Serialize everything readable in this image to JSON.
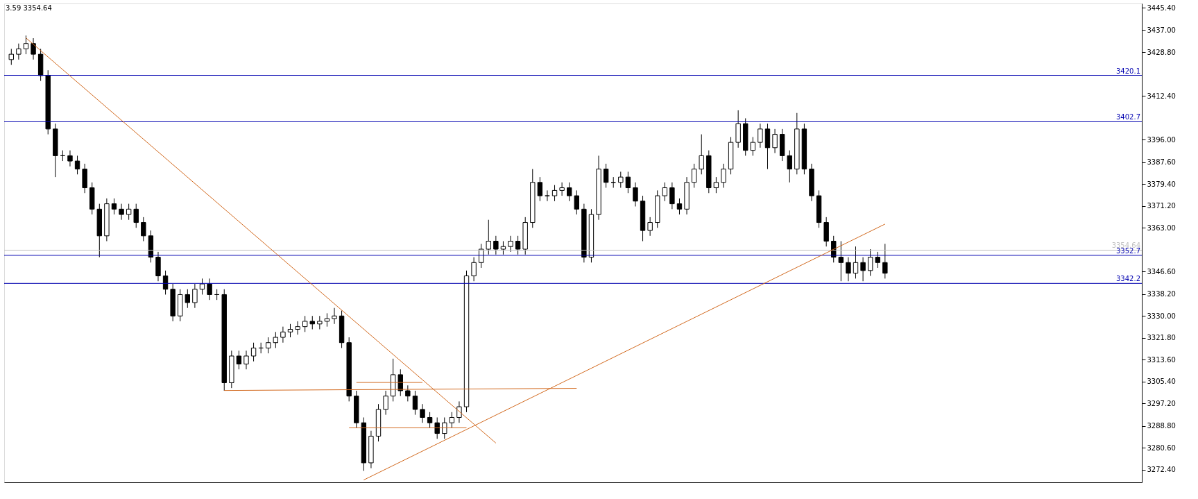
{
  "chart_data": {
    "type": "candlestick",
    "categories": [
      null,
      null,
      null,
      null,
      null,
      null,
      null,
      null,
      null,
      null,
      null,
      null,
      null,
      null,
      null,
      null,
      null,
      null,
      null,
      null,
      null,
      null,
      null,
      null,
      null,
      null,
      null,
      null,
      null,
      null,
      null,
      null,
      null,
      null,
      null,
      null,
      null,
      null,
      null,
      null,
      null,
      null,
      null,
      null,
      null,
      null,
      null,
      null,
      null,
      null,
      null,
      null,
      null,
      null,
      null,
      null,
      null,
      null,
      null,
      null,
      null,
      null,
      null,
      null,
      null,
      null,
      null,
      null,
      null,
      null,
      null,
      null,
      null,
      null,
      null,
      null,
      null,
      null,
      null,
      null,
      null,
      null,
      null,
      null,
      null,
      null,
      null,
      null,
      null,
      null,
      null,
      null,
      null,
      null,
      null,
      null,
      null,
      null,
      null,
      null,
      null,
      null,
      null,
      null,
      null,
      null,
      null,
      null,
      null,
      null,
      null,
      null,
      null,
      null,
      null,
      null,
      null,
      null,
      null,
      null,
      null,
      null,
      null,
      null,
      null,
      null,
      null,
      null,
      null,
      null,
      null,
      null,
      null,
      null,
      null,
      null,
      null,
      null,
      null,
      null,
      null,
      null,
      null,
      null,
      null,
      null,
      null,
      null,
      null,
      null,
      null,
      null,
      null,
      null
    ],
    "ohlc": [
      [
        3426,
        3430,
        3424,
        3428
      ],
      [
        3428,
        3432,
        3426,
        3430
      ],
      [
        3430,
        3435,
        3428,
        3432
      ],
      [
        3432,
        3434,
        3426,
        3428
      ],
      [
        3428,
        3430,
        3418,
        3420
      ],
      [
        3420,
        3422,
        3398,
        3400
      ],
      [
        3400,
        3402,
        3382,
        3390
      ],
      [
        3390,
        3392,
        3388,
        3390
      ],
      [
        3390,
        3392,
        3386,
        3388
      ],
      [
        3388,
        3390,
        3383,
        3385
      ],
      [
        3385,
        3387,
        3376,
        3378
      ],
      [
        3378,
        3380,
        3368,
        3370
      ],
      [
        3370,
        3372,
        3352,
        3360
      ],
      [
        3360,
        3374,
        3358,
        3372
      ],
      [
        3372,
        3374,
        3368,
        3370
      ],
      [
        3370,
        3372,
        3366,
        3368
      ],
      [
        3368,
        3372,
        3366,
        3370
      ],
      [
        3370,
        3372,
        3363,
        3365
      ],
      [
        3365,
        3367,
        3358,
        3360
      ],
      [
        3360,
        3362,
        3350,
        3352
      ],
      [
        3352,
        3354,
        3343,
        3345
      ],
      [
        3345,
        3347,
        3338,
        3340
      ],
      [
        3340,
        3342,
        3328,
        3330
      ],
      [
        3330,
        3340,
        3328,
        3338
      ],
      [
        3338,
        3340,
        3333,
        3335
      ],
      [
        3335,
        3342,
        3333,
        3340
      ],
      [
        3340,
        3344,
        3338,
        3342
      ],
      [
        3342,
        3344,
        3336,
        3338
      ],
      [
        3338,
        3340,
        3336,
        3338
      ],
      [
        3338,
        3340,
        3302,
        3305
      ],
      [
        3305,
        3317,
        3303,
        3315
      ],
      [
        3315,
        3317,
        3310,
        3312
      ],
      [
        3312,
        3317,
        3310,
        3315
      ],
      [
        3315,
        3320,
        3313,
        3318
      ],
      [
        3318,
        3320,
        3316,
        3318
      ],
      [
        3318,
        3322,
        3316,
        3320
      ],
      [
        3320,
        3324,
        3318,
        3322
      ],
      [
        3322,
        3326,
        3320,
        3324
      ],
      [
        3324,
        3327,
        3322,
        3325
      ],
      [
        3325,
        3328,
        3323,
        3326
      ],
      [
        3326,
        3330,
        3324,
        3328
      ],
      [
        3328,
        3330,
        3325,
        3327
      ],
      [
        3327,
        3330,
        3325,
        3328
      ],
      [
        3328,
        3331,
        3326,
        3329
      ],
      [
        3329,
        3333,
        3327,
        3330
      ],
      [
        3330,
        3332,
        3318,
        3320
      ],
      [
        3320,
        3322,
        3298,
        3300
      ],
      [
        3300,
        3302,
        3288,
        3290
      ],
      [
        3290,
        3292,
        3272,
        3275
      ],
      [
        3275,
        3287,
        3273,
        3285
      ],
      [
        3285,
        3297,
        3283,
        3295
      ],
      [
        3295,
        3302,
        3293,
        3300
      ],
      [
        3300,
        3314,
        3298,
        3308
      ],
      [
        3308,
        3310,
        3300,
        3302
      ],
      [
        3302,
        3304,
        3298,
        3300
      ],
      [
        3300,
        3302,
        3293,
        3295
      ],
      [
        3295,
        3297,
        3290,
        3292
      ],
      [
        3292,
        3294,
        3288,
        3290
      ],
      [
        3290,
        3292,
        3284,
        3286
      ],
      [
        3286,
        3292,
        3284,
        3290
      ],
      [
        3290,
        3294,
        3288,
        3292
      ],
      [
        3292,
        3298,
        3290,
        3296
      ],
      [
        3296,
        3347,
        3294,
        3345
      ],
      [
        3345,
        3352,
        3343,
        3350
      ],
      [
        3350,
        3357,
        3348,
        3355
      ],
      [
        3355,
        3366,
        3353,
        3358
      ],
      [
        3358,
        3360,
        3353,
        3355
      ],
      [
        3355,
        3358,
        3353,
        3356
      ],
      [
        3356,
        3360,
        3354,
        3358
      ],
      [
        3358,
        3360,
        3353,
        3355
      ],
      [
        3355,
        3367,
        3353,
        3365
      ],
      [
        3365,
        3385,
        3363,
        3380
      ],
      [
        3380,
        3382,
        3373,
        3375
      ],
      [
        3375,
        3377,
        3373,
        3375
      ],
      [
        3375,
        3379,
        3373,
        3377
      ],
      [
        3377,
        3380,
        3375,
        3378
      ],
      [
        3378,
        3380,
        3373,
        3375
      ],
      [
        3375,
        3377,
        3368,
        3370
      ],
      [
        3370,
        3372,
        3350,
        3352
      ],
      [
        3352,
        3370,
        3350,
        3368
      ],
      [
        3368,
        3390,
        3366,
        3385
      ],
      [
        3385,
        3387,
        3378,
        3380
      ],
      [
        3380,
        3382,
        3378,
        3380
      ],
      [
        3380,
        3384,
        3378,
        3382
      ],
      [
        3382,
        3384,
        3376,
        3378
      ],
      [
        3378,
        3380,
        3371,
        3373
      ],
      [
        3373,
        3375,
        3358,
        3362
      ],
      [
        3362,
        3367,
        3360,
        3365
      ],
      [
        3365,
        3377,
        3363,
        3375
      ],
      [
        3375,
        3380,
        3373,
        3378
      ],
      [
        3378,
        3380,
        3370,
        3372
      ],
      [
        3372,
        3374,
        3368,
        3370
      ],
      [
        3370,
        3382,
        3368,
        3380
      ],
      [
        3380,
        3387,
        3378,
        3385
      ],
      [
        3385,
        3398,
        3383,
        3390
      ],
      [
        3390,
        3392,
        3376,
        3378
      ],
      [
        3378,
        3382,
        3376,
        3380
      ],
      [
        3380,
        3387,
        3378,
        3385
      ],
      [
        3385,
        3397,
        3383,
        3395
      ],
      [
        3395,
        3407,
        3393,
        3402
      ],
      [
        3402,
        3404,
        3390,
        3392
      ],
      [
        3392,
        3397,
        3390,
        3395
      ],
      [
        3395,
        3402,
        3393,
        3400
      ],
      [
        3400,
        3402,
        3385,
        3393
      ],
      [
        3393,
        3400,
        3391,
        3398
      ],
      [
        3398,
        3400,
        3388,
        3390
      ],
      [
        3390,
        3392,
        3380,
        3385
      ],
      [
        3385,
        3406,
        3383,
        3400
      ],
      [
        3400,
        3402,
        3383,
        3385
      ],
      [
        3385,
        3387,
        3373,
        3375
      ],
      [
        3375,
        3377,
        3363,
        3365
      ],
      [
        3365,
        3367,
        3356,
        3358
      ],
      [
        3358,
        3360,
        3350,
        3352
      ],
      [
        3352,
        3358,
        3343,
        3350
      ],
      [
        3350,
        3352,
        3343,
        3346
      ],
      [
        3346,
        3356,
        3344,
        3350
      ],
      [
        3350,
        3352,
        3343,
        3347
      ],
      [
        3347,
        3355,
        3345,
        3352
      ],
      [
        3352,
        3354,
        3348,
        3350
      ],
      [
        3350,
        3357,
        3344,
        3346
      ],
      null,
      null,
      null,
      null,
      null,
      null,
      null,
      null,
      null,
      null,
      null,
      null,
      null,
      null,
      null,
      null,
      null,
      null,
      null,
      null,
      null,
      null,
      null,
      null,
      null,
      null,
      null,
      null,
      null,
      null,
      null,
      null,
      null,
      null
    ],
    "series": [
      {
        "type": "line",
        "color": "#d2691e",
        "values": [
          null,
          null,
          3434.1,
          null,
          null,
          null,
          null,
          null,
          null,
          null,
          null,
          null,
          null,
          null,
          null,
          null,
          null,
          null,
          null,
          null,
          null,
          null,
          null,
          null,
          null,
          null,
          null,
          null,
          null,
          null,
          null,
          null,
          null,
          null,
          null,
          null,
          null,
          null,
          null,
          null,
          null,
          null,
          null,
          null,
          null,
          null,
          null,
          null,
          null,
          null,
          null,
          null,
          null,
          null,
          null,
          null,
          null,
          null,
          null,
          null,
          null,
          null,
          null,
          null,
          null,
          null,
          3282.4,
          null,
          null,
          null,
          null,
          null,
          null,
          null,
          null,
          null,
          null,
          null,
          null,
          null,
          null,
          null,
          null,
          null,
          null,
          null,
          null,
          null,
          null,
          null,
          null,
          null,
          null,
          null,
          null,
          null,
          null,
          null,
          null,
          null,
          null,
          null,
          null,
          null,
          null,
          null,
          null,
          null,
          null,
          null,
          null,
          null,
          null,
          null,
          null,
          null,
          null,
          null,
          null,
          null,
          null,
          null,
          null,
          null,
          null,
          null,
          null,
          null,
          null,
          null,
          null,
          null,
          null,
          null,
          null,
          null,
          null,
          null,
          null,
          null,
          null,
          null,
          null,
          null,
          null,
          null,
          null,
          null,
          null,
          null,
          null,
          null,
          null,
          null
        ]
      },
      {
        "type": "line",
        "color": "#d2691e",
        "values": [
          null,
          null,
          null,
          null,
          null,
          null,
          null,
          null,
          null,
          null,
          null,
          null,
          null,
          null,
          null,
          null,
          null,
          null,
          null,
          null,
          null,
          null,
          null,
          null,
          null,
          null,
          null,
          null,
          null,
          3302.1,
          null,
          null,
          null,
          null,
          null,
          null,
          null,
          null,
          null,
          null,
          null,
          null,
          null,
          null,
          null,
          null,
          null,
          null,
          null,
          null,
          null,
          null,
          null,
          null,
          null,
          null,
          null,
          null,
          null,
          null,
          null,
          null,
          null,
          null,
          null,
          null,
          null,
          null,
          null,
          null,
          null,
          null,
          null,
          null,
          null,
          null,
          null,
          3302.9,
          null,
          null,
          null,
          null,
          null,
          null,
          null,
          null,
          null,
          null,
          null,
          null,
          null,
          null,
          null,
          null,
          null,
          null,
          null,
          null,
          null,
          null,
          null,
          null,
          null,
          null,
          null,
          null,
          null,
          null,
          null,
          null,
          null,
          null,
          null,
          null,
          null,
          null,
          null,
          null,
          null,
          null,
          null,
          null,
          null,
          null,
          null,
          null,
          null,
          null,
          null,
          null,
          null,
          null,
          null,
          null,
          null,
          null,
          null,
          null,
          null,
          null,
          null,
          null,
          null,
          null,
          null,
          null,
          null,
          null,
          null,
          null,
          null,
          null,
          null,
          null
        ]
      },
      {
        "type": "line",
        "color": "#d2691e",
        "values": [
          null,
          null,
          null,
          null,
          null,
          null,
          null,
          null,
          null,
          null,
          null,
          null,
          null,
          null,
          null,
          null,
          null,
          null,
          null,
          null,
          null,
          null,
          null,
          null,
          null,
          null,
          null,
          null,
          null,
          null,
          null,
          null,
          null,
          null,
          null,
          null,
          null,
          null,
          null,
          null,
          null,
          null,
          null,
          null,
          null,
          null,
          null,
          3305.1,
          null,
          null,
          null,
          null,
          null,
          null,
          null,
          null,
          3305.1,
          null,
          null,
          null,
          null,
          null,
          null,
          null,
          null,
          null,
          null,
          null,
          null,
          null,
          null,
          null,
          null,
          null,
          null,
          null,
          null,
          null,
          null,
          null,
          null,
          null,
          null,
          null,
          null,
          null,
          null,
          null,
          null,
          null,
          null,
          null,
          null,
          null,
          null,
          null,
          null,
          null,
          null,
          null,
          null,
          null,
          null,
          null,
          null,
          null,
          null,
          null,
          null,
          null,
          null,
          null,
          null,
          null,
          null,
          null,
          null,
          null,
          null,
          null,
          null,
          null,
          null,
          null,
          null,
          null,
          null,
          null,
          null,
          null,
          null,
          null,
          null,
          null,
          null,
          null,
          null,
          null,
          null,
          null,
          null,
          null,
          null,
          null,
          null,
          null,
          null,
          null,
          null,
          null,
          null,
          null,
          null,
          null
        ]
      },
      {
        "type": "line",
        "color": "#d2691e",
        "values": [
          null,
          null,
          null,
          null,
          null,
          null,
          null,
          null,
          null,
          null,
          null,
          null,
          null,
          null,
          null,
          null,
          null,
          null,
          null,
          null,
          null,
          null,
          null,
          null,
          null,
          null,
          null,
          null,
          null,
          null,
          null,
          null,
          null,
          null,
          null,
          null,
          null,
          null,
          null,
          null,
          null,
          null,
          null,
          null,
          null,
          null,
          3288.1,
          null,
          null,
          null,
          null,
          null,
          null,
          null,
          null,
          null,
          null,
          null,
          null,
          null,
          null,
          null,
          3288.1,
          null,
          null,
          null,
          null,
          null,
          null,
          null,
          null,
          null,
          null,
          null,
          null,
          null,
          null,
          null,
          null,
          null,
          null,
          null,
          null,
          null,
          null,
          null,
          null,
          null,
          null,
          null,
          null,
          null,
          null,
          null,
          null,
          null,
          null,
          null,
          null,
          null,
          null,
          null,
          null,
          null,
          null,
          null,
          null,
          null,
          null,
          null,
          null,
          null,
          null,
          null,
          null,
          null,
          null,
          null,
          null,
          null,
          null,
          null,
          null,
          null,
          null,
          null,
          null,
          null,
          null,
          null,
          null,
          null,
          null,
          null,
          null,
          null,
          null,
          null,
          null,
          null,
          null,
          null,
          null,
          null,
          null,
          null,
          null,
          null,
          null,
          null,
          null,
          null,
          null,
          null
        ]
      },
      {
        "type": "line",
        "color": "#d2691e",
        "values": [
          null,
          null,
          null,
          null,
          null,
          null,
          null,
          null,
          null,
          null,
          null,
          null,
          null,
          null,
          null,
          null,
          null,
          null,
          null,
          null,
          null,
          null,
          null,
          null,
          null,
          null,
          null,
          null,
          null,
          null,
          null,
          null,
          null,
          null,
          null,
          null,
          null,
          null,
          null,
          null,
          null,
          null,
          null,
          null,
          null,
          null,
          null,
          null,
          3268.6,
          null,
          null,
          null,
          null,
          null,
          null,
          null,
          null,
          null,
          null,
          null,
          null,
          null,
          null,
          null,
          null,
          null,
          null,
          null,
          null,
          null,
          null,
          null,
          null,
          null,
          null,
          null,
          null,
          null,
          null,
          null,
          null,
          null,
          null,
          null,
          null,
          null,
          null,
          null,
          null,
          null,
          null,
          null,
          null,
          null,
          null,
          null,
          null,
          null,
          null,
          null,
          null,
          null,
          null,
          null,
          null,
          null,
          null,
          null,
          null,
          null,
          null,
          null,
          null,
          null,
          null,
          null,
          null,
          null,
          null,
          3364.4,
          null,
          null,
          null,
          null,
          null,
          null,
          null,
          null,
          null,
          null,
          null,
          null,
          null,
          null,
          null,
          null,
          null,
          null,
          null,
          null,
          null,
          null,
          null,
          null,
          null,
          null,
          null,
          null,
          null,
          null,
          null,
          null,
          null,
          null
        ]
      }
    ],
    "ylim": [
      3267.7,
      3447.0
    ],
    "yticks": [
      {
        "value": 3445.4,
        "label": "3445.40"
      },
      {
        "value": 3437.0,
        "label": "3437.00"
      },
      {
        "value": 3428.8,
        "label": "3428.80"
      },
      {
        "value": 3412.4,
        "label": "3412.40"
      },
      {
        "value": 3396.0,
        "label": "3396.00"
      },
      {
        "value": 3387.6,
        "label": "3387.60"
      },
      {
        "value": 3379.4,
        "label": "3379.40"
      },
      {
        "value": 3371.2,
        "label": "3371.20"
      },
      {
        "value": 3363.0,
        "label": "3363.00"
      },
      {
        "value": 3346.6,
        "label": "3346.60"
      },
      {
        "value": 3338.2,
        "label": "3338.20"
      },
      {
        "value": 3330.0,
        "label": "3330.00"
      },
      {
        "value": 3321.8,
        "label": "3321.80"
      },
      {
        "value": 3313.6,
        "label": "3313.60"
      },
      {
        "value": 3305.4,
        "label": "3305.40"
      },
      {
        "value": 3297.2,
        "label": "3297.20"
      },
      {
        "value": 3288.8,
        "label": "3288.80"
      },
      {
        "value": 3280.6,
        "label": "3280.60"
      },
      {
        "value": 3272.4,
        "label": "3272.40"
      }
    ],
    "ref_lines": [
      {
        "axis": "y",
        "value": 3420.1,
        "label": "3420.1",
        "color": "#0000b0"
      },
      {
        "axis": "y",
        "value": 3402.7,
        "label": "3402.7",
        "color": "#0000b0"
      },
      {
        "axis": "y",
        "value": 3354.64,
        "label": "3354.64",
        "color": "#c0c0c0"
      },
      {
        "axis": "y",
        "value": 3352.7,
        "label": "3352.7",
        "color": "#0000b0"
      },
      {
        "axis": "y",
        "value": 3342.2,
        "label": "3342.2",
        "color": "#0000b0"
      }
    ],
    "annotations": [
      "3.59 3354.64"
    ],
    "tick_labels": "y",
    "grid": false
  }
}
